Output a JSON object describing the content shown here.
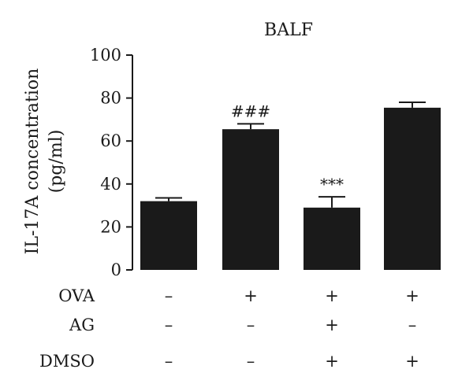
{
  "chart_data": {
    "type": "bar",
    "title": "BALF",
    "ylabel_line1": "IL-17A concentration",
    "ylabel_line2": "(pg/ml)",
    "ylim": [
      0,
      100
    ],
    "yticks": [
      "0",
      "20",
      "40",
      "60",
      "80",
      "100"
    ],
    "ytick_values": [
      0,
      20,
      40,
      60,
      80,
      100
    ],
    "values": [
      32,
      65.5,
      29,
      75.5
    ],
    "errors": [
      1.5,
      2.5,
      5,
      2.5
    ],
    "annotations": [
      "",
      "###",
      "***",
      ""
    ],
    "bar_color": "#1a1a1a",
    "treatments": [
      {
        "name": "OVA",
        "symbols": [
          "–",
          "+",
          "+",
          "+"
        ]
      },
      {
        "name": "AG",
        "symbols": [
          "–",
          "–",
          "+",
          "–"
        ]
      },
      {
        "name": "DMSO",
        "symbols": [
          "–",
          "–",
          "+",
          "+"
        ]
      }
    ]
  }
}
